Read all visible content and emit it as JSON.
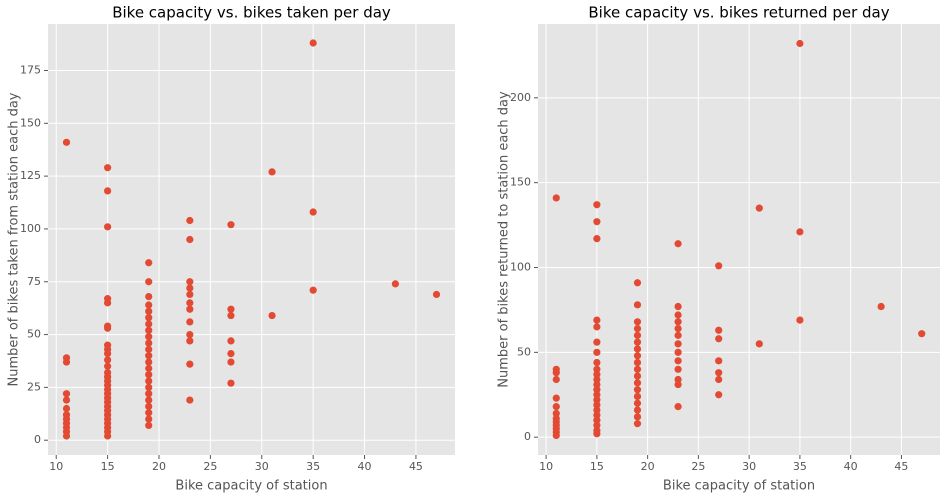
{
  "chart_data": [
    {
      "type": "scatter",
      "title": "Bike capacity vs. bikes taken per day",
      "xlabel": "Bike capacity of station",
      "ylabel": "Number of bikes taken from station each day",
      "color": "#e24a33",
      "grid": true,
      "x": [
        11,
        11,
        11,
        11,
        11,
        11,
        11,
        11,
        11,
        11,
        11,
        11,
        15,
        15,
        15,
        15,
        15,
        15,
        15,
        15,
        15,
        15,
        15,
        15,
        15,
        15,
        15,
        15,
        15,
        15,
        15,
        15,
        15,
        15,
        15,
        15,
        15,
        15,
        15,
        15,
        19,
        19,
        19,
        19,
        19,
        19,
        19,
        19,
        19,
        19,
        19,
        19,
        19,
        19,
        19,
        19,
        19,
        19,
        19,
        19,
        19,
        19,
        19,
        23,
        23,
        23,
        23,
        23,
        23,
        23,
        23,
        23,
        23,
        23,
        23,
        27,
        27,
        27,
        27,
        27,
        27,
        27,
        31,
        31,
        35,
        35,
        35,
        43,
        47
      ],
      "values": [
        141,
        39,
        37,
        22,
        19,
        15,
        12,
        10,
        8,
        6,
        4,
        2,
        129,
        118,
        101,
        67,
        65,
        54,
        53,
        45,
        43,
        41,
        38,
        35,
        32,
        30,
        28,
        26,
        24,
        22,
        20,
        18,
        16,
        14,
        12,
        10,
        8,
        6,
        4,
        2,
        84,
        75,
        68,
        64,
        61,
        58,
        55,
        52,
        49,
        46,
        43,
        40,
        37,
        34,
        31,
        28,
        25,
        22,
        19,
        16,
        13,
        10,
        7,
        104,
        95,
        75,
        72,
        69,
        65,
        62,
        56,
        50,
        47,
        36,
        19,
        102,
        62,
        59,
        47,
        41,
        37,
        27,
        127,
        59,
        188,
        108,
        71,
        74,
        69
      ],
      "xlim": [
        9.2,
        48.8
      ],
      "xticks": [
        10,
        15,
        20,
        25,
        30,
        35,
        40,
        45
      ],
      "ylim": [
        -7,
        197
      ],
      "yticks": [
        0,
        25,
        50,
        75,
        100,
        125,
        150,
        175
      ]
    },
    {
      "type": "scatter",
      "title": "Bike capacity vs. bikes returned per day",
      "xlabel": "Bike capacity of station",
      "ylabel": "Number of bikes returned to station each day",
      "color": "#e24a33",
      "grid": true,
      "x": [
        11,
        11,
        11,
        11,
        11,
        11,
        11,
        11,
        11,
        11,
        11,
        11,
        11,
        15,
        15,
        15,
        15,
        15,
        15,
        15,
        15,
        15,
        15,
        15,
        15,
        15,
        15,
        15,
        15,
        15,
        15,
        15,
        15,
        15,
        15,
        19,
        19,
        19,
        19,
        19,
        19,
        19,
        19,
        19,
        19,
        19,
        19,
        19,
        19,
        19,
        19,
        19,
        19,
        23,
        23,
        23,
        23,
        23,
        23,
        23,
        23,
        23,
        23,
        23,
        23,
        23,
        27,
        27,
        27,
        27,
        27,
        27,
        27,
        31,
        31,
        35,
        35,
        35,
        43,
        47
      ],
      "values": [
        141,
        40,
        38,
        34,
        23,
        18,
        14,
        11,
        9,
        7,
        5,
        3,
        1,
        137,
        127,
        117,
        69,
        65,
        56,
        50,
        44,
        40,
        37,
        34,
        31,
        28,
        25,
        22,
        19,
        16,
        13,
        10,
        7,
        4,
        2,
        91,
        78,
        68,
        64,
        60,
        56,
        52,
        48,
        44,
        40,
        36,
        32,
        28,
        24,
        20,
        16,
        12,
        8,
        114,
        77,
        72,
        68,
        64,
        60,
        55,
        50,
        45,
        40,
        34,
        31,
        18,
        101,
        63,
        58,
        45,
        38,
        34,
        25,
        135,
        55,
        232,
        121,
        69,
        77,
        61
      ],
      "xlim": [
        9.2,
        48.8
      ],
      "xticks": [
        10,
        15,
        20,
        25,
        30,
        35,
        40,
        45
      ],
      "ylim": [
        -10.5,
        243.5
      ],
      "yticks": [
        0,
        50,
        100,
        150,
        200
      ]
    }
  ]
}
